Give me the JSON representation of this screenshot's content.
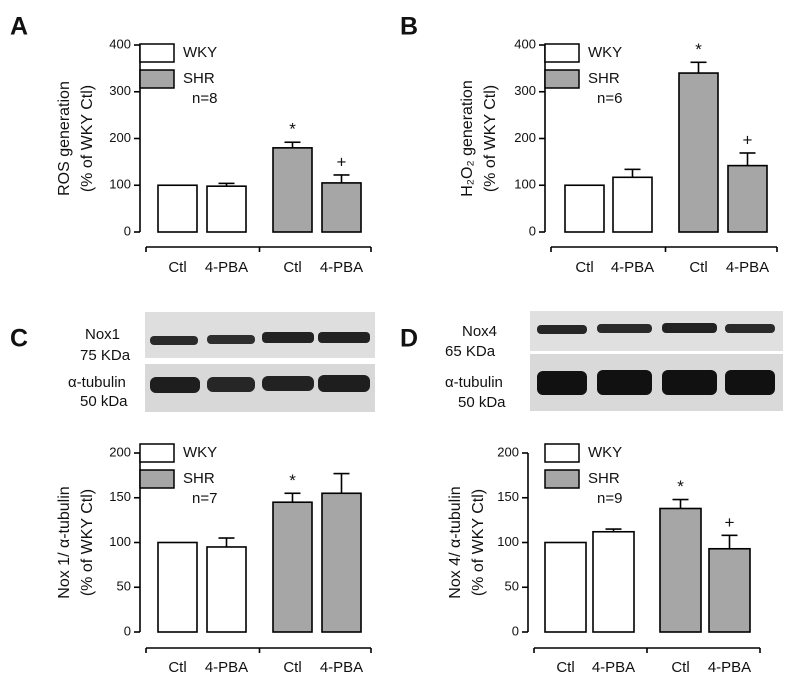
{
  "chart_data": [
    {
      "type": "bar",
      "panel": "A",
      "ylabel": "ROS generation",
      "ylabel2": "(% of WKY Ctl)",
      "categories": [
        "Ctl",
        "4-PBA",
        "Ctl",
        "4-PBA"
      ],
      "series": [
        {
          "name": "WKY",
          "color": "#ffffff",
          "values": [
            100,
            98,
            null,
            null
          ],
          "errors": [
            0,
            6,
            null,
            null
          ]
        },
        {
          "name": "SHR",
          "color": "#a6a6a6",
          "values": [
            null,
            null,
            180,
            105
          ],
          "errors": [
            null,
            null,
            12,
            17
          ]
        }
      ],
      "annotations": [
        null,
        null,
        "*",
        "+"
      ],
      "note": "n=8",
      "ylim": [
        0,
        400
      ],
      "yticks": [
        0,
        100,
        200,
        300,
        400
      ]
    },
    {
      "type": "bar",
      "panel": "B",
      "ylabel": "H₂O₂ generation",
      "ylabel2": "(% of WKY Ctl)",
      "categories": [
        "Ctl",
        "4-PBA",
        "Ctl",
        "4-PBA"
      ],
      "series": [
        {
          "name": "WKY",
          "color": "#ffffff",
          "values": [
            100,
            117,
            null,
            null
          ],
          "errors": [
            0,
            17,
            null,
            null
          ]
        },
        {
          "name": "SHR",
          "color": "#a6a6a6",
          "values": [
            null,
            null,
            340,
            142
          ],
          "errors": [
            null,
            null,
            23,
            27
          ]
        }
      ],
      "annotations": [
        null,
        null,
        "*",
        "+"
      ],
      "note": "n=6",
      "ylim": [
        0,
        400
      ],
      "yticks": [
        0,
        100,
        200,
        300,
        400
      ]
    },
    {
      "type": "bar",
      "panel": "C",
      "ylabel": "Nox 1/ α-tubulin",
      "ylabel2": "(% of WKY Ctl)",
      "blot_labels": [
        "Nox1",
        "75 KDa",
        "α-tubulin",
        "50 kDa"
      ],
      "categories": [
        "Ctl",
        "4-PBA",
        "Ctl",
        "4-PBA"
      ],
      "series": [
        {
          "name": "WKY",
          "color": "#ffffff",
          "values": [
            100,
            95,
            null,
            null
          ],
          "errors": [
            0,
            10,
            null,
            null
          ]
        },
        {
          "name": "SHR",
          "color": "#a6a6a6",
          "values": [
            null,
            null,
            145,
            155
          ],
          "errors": [
            null,
            null,
            10,
            22
          ]
        }
      ],
      "annotations": [
        null,
        null,
        "*",
        null
      ],
      "note": "n=7",
      "ylim": [
        0,
        200
      ],
      "yticks": [
        0,
        50,
        100,
        150,
        200
      ]
    },
    {
      "type": "bar",
      "panel": "D",
      "ylabel": "Nox 4/ α-tubulin",
      "ylabel2": "(% of WKY Ctl)",
      "blot_labels": [
        "Nox4",
        "65 KDa",
        "α-tubulin",
        "50 kDa"
      ],
      "categories": [
        "Ctl",
        "4-PBA",
        "Ctl",
        "4-PBA"
      ],
      "series": [
        {
          "name": "WKY",
          "color": "#ffffff",
          "values": [
            100,
            112,
            null,
            null
          ],
          "errors": [
            0,
            3,
            null,
            null
          ]
        },
        {
          "name": "SHR",
          "color": "#a6a6a6",
          "values": [
            null,
            null,
            138,
            93
          ],
          "errors": [
            null,
            null,
            10,
            15
          ]
        }
      ],
      "annotations": [
        null,
        null,
        "*",
        "+"
      ],
      "note": "n=9",
      "ylim": [
        0,
        200
      ],
      "yticks": [
        0,
        50,
        100,
        150,
        200
      ]
    }
  ]
}
